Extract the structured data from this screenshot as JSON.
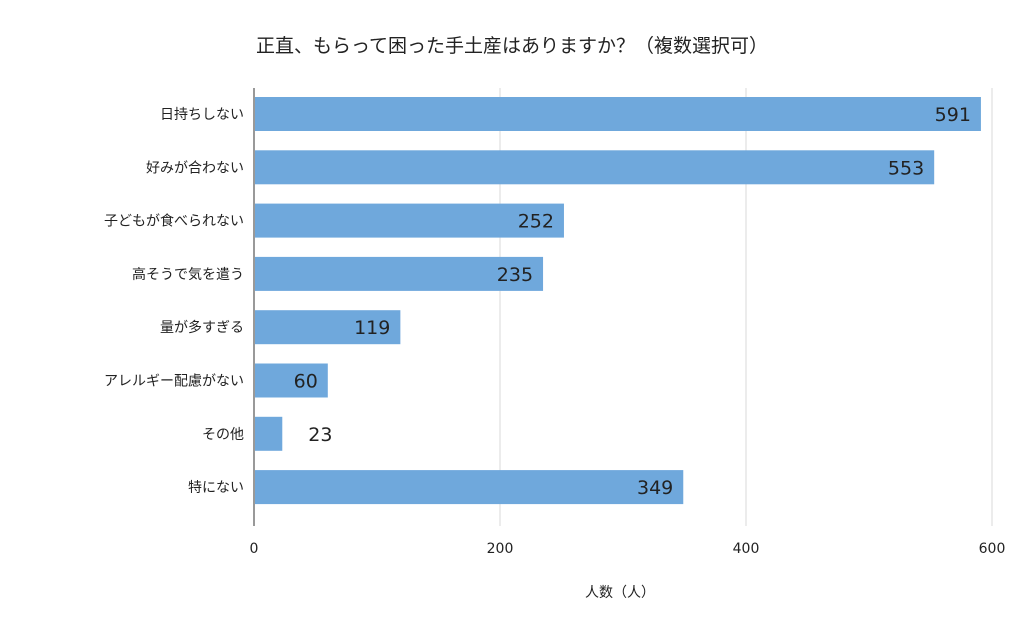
{
  "chart_data": {
    "type": "bar",
    "orientation": "horizontal",
    "title": "正直、もらって困った手土産はありますか？（複数選択可）",
    "xlabel": "人数（人）",
    "ylabel": "",
    "categories": [
      "日持ちしない",
      "好みが合わない",
      "子どもが食べられない",
      "高そうで気を遣う",
      "量が多すぎる",
      "アレルギー配慮がない",
      "その他",
      "特にない"
    ],
    "values": [
      591,
      553,
      252,
      235,
      119,
      60,
      23,
      349
    ],
    "xlim": [
      0,
      600
    ],
    "xticks": [
      0,
      200,
      400,
      600
    ],
    "grid": true,
    "legend": "none",
    "bar_color": "#6fa8dc"
  }
}
